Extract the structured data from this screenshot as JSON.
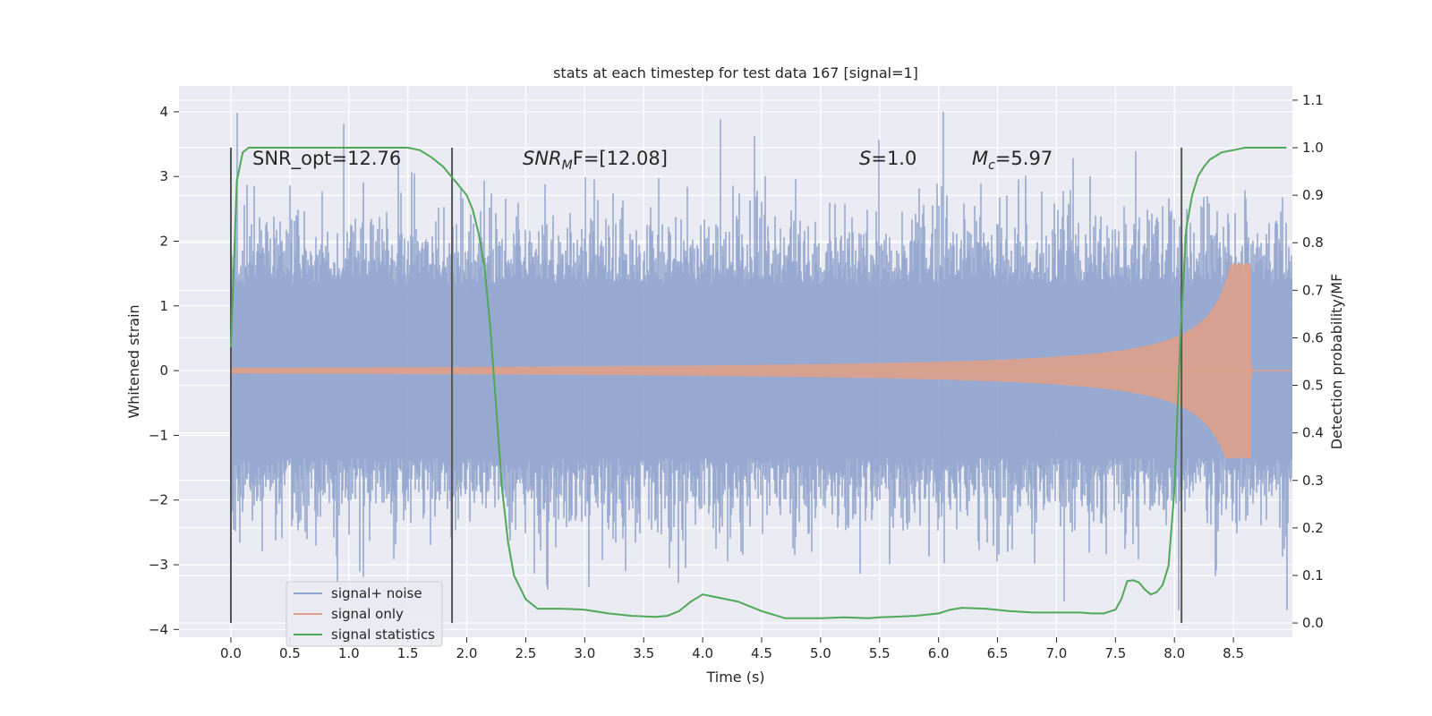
{
  "chart_data": {
    "type": "line",
    "title": "stats at each timestep for test data 167 [signal=1]",
    "xlabel": "Time (s)",
    "ylabel": "Whitened strain",
    "y2label": "Detection probability/MF",
    "xlim": [
      -0.44,
      9.0
    ],
    "ylim": [
      -4.12,
      4.4
    ],
    "y2lim": [
      -0.03,
      1.13
    ],
    "x_ticks": [
      "0.0",
      "0.5",
      "1.0",
      "1.5",
      "2.0",
      "2.5",
      "3.0",
      "3.5",
      "4.0",
      "4.5",
      "5.0",
      "5.5",
      "6.0",
      "6.5",
      "7.0",
      "7.5",
      "8.0",
      "8.5"
    ],
    "y_ticks": [
      "4",
      "3",
      "2",
      "1",
      "0",
      "−1",
      "−2",
      "−3",
      "−4"
    ],
    "y2_ticks": [
      "1.1",
      "1.0",
      "0.9",
      "0.8",
      "0.7",
      "0.6",
      "0.5",
      "0.4",
      "0.3",
      "0.2",
      "0.1",
      "0.0"
    ],
    "grid": true,
    "legend_position": "lower-left",
    "colors": {
      "background": "#eaeaf2",
      "grid": "#ffffff",
      "noise": "#8ea2cc",
      "signal": "#e1a086",
      "statistics": "#4fa857",
      "vlines": "#555555"
    },
    "annotations": {
      "snr_opt": "SNR_opt=12.76",
      "snr_mf_base": "SNR",
      "snr_mf_sub": "M",
      "snr_mf_rest": "F=[12.08]",
      "s_italic": "S",
      "s_rest": "=1.0",
      "mc_italic": "M",
      "mc_sub": "c",
      "mc_rest": "=5.97"
    },
    "vertical_lines_x": [
      0.0,
      1.875,
      8.06
    ],
    "series": [
      {
        "name": "signal+ noise",
        "kind": "noise",
        "x_range": [
          0.0,
          9.0
        ],
        "typical_amplitude": 1.35,
        "max": 4.0,
        "min": -3.7
      },
      {
        "name": "signal only",
        "kind": "chirp",
        "merger_x": 8.65,
        "peak_max": 1.65,
        "peak_min": -1.35
      },
      {
        "name": "signal statistics",
        "kind": "probability",
        "x": [
          0.0,
          0.05,
          0.1,
          0.15,
          0.2,
          0.4,
          0.7,
          1.0,
          1.3,
          1.5,
          1.6,
          1.7,
          1.8,
          1.9,
          2.0,
          2.05,
          2.1,
          2.15,
          2.2,
          2.25,
          2.3,
          2.35,
          2.4,
          2.5,
          2.6,
          2.8,
          3.0,
          3.2,
          3.4,
          3.6,
          3.7,
          3.8,
          3.9,
          4.0,
          4.1,
          4.3,
          4.5,
          4.7,
          5.0,
          5.2,
          5.4,
          5.5,
          5.6,
          5.8,
          6.0,
          6.1,
          6.2,
          6.4,
          6.6,
          6.8,
          7.0,
          7.2,
          7.3,
          7.4,
          7.5,
          7.55,
          7.6,
          7.65,
          7.7,
          7.75,
          7.8,
          7.85,
          7.9,
          7.95,
          8.0,
          8.05,
          8.1,
          8.15,
          8.2,
          8.25,
          8.3,
          8.4,
          8.5,
          8.6,
          8.7,
          8.8,
          8.9,
          8.95
        ],
        "values": [
          0.58,
          0.93,
          0.99,
          1.0,
          1.0,
          1.0,
          1.0,
          1.0,
          1.0,
          1.0,
          0.995,
          0.98,
          0.96,
          0.93,
          0.9,
          0.87,
          0.82,
          0.75,
          0.62,
          0.45,
          0.28,
          0.17,
          0.1,
          0.05,
          0.03,
          0.03,
          0.028,
          0.02,
          0.015,
          0.013,
          0.015,
          0.025,
          0.045,
          0.06,
          0.055,
          0.045,
          0.025,
          0.01,
          0.01,
          0.012,
          0.01,
          0.012,
          0.013,
          0.015,
          0.02,
          0.028,
          0.032,
          0.03,
          0.025,
          0.022,
          0.022,
          0.022,
          0.02,
          0.02,
          0.028,
          0.05,
          0.088,
          0.09,
          0.085,
          0.07,
          0.06,
          0.065,
          0.08,
          0.12,
          0.28,
          0.6,
          0.83,
          0.9,
          0.94,
          0.96,
          0.975,
          0.99,
          0.995,
          1.0,
          1.0,
          1.0,
          1.0,
          1.0
        ]
      }
    ]
  }
}
